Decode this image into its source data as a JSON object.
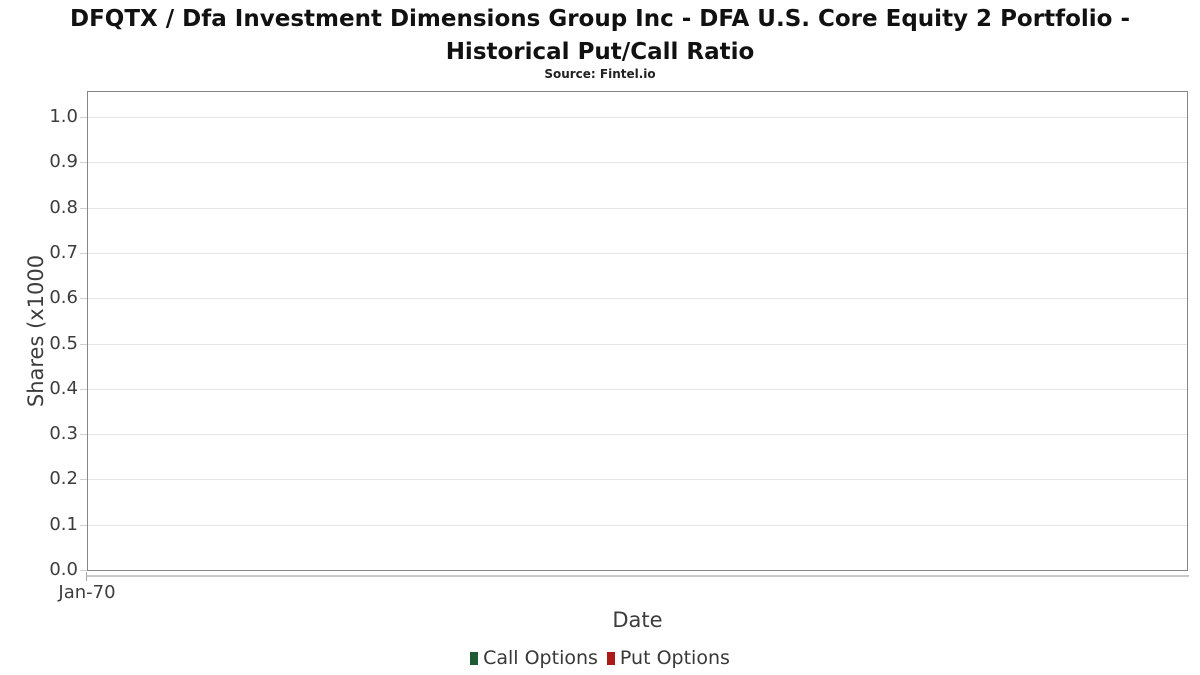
{
  "header": {
    "title_lines": [
      "DFQTX / Dfa Investment Dimensions Group Inc - DFA U.S. Core Equity 2 Portfolio -",
      "Historical Put/Call Ratio"
    ],
    "subtitle": "Source: Fintel.io"
  },
  "chart_data": {
    "type": "bar",
    "title": "DFQTX / Dfa Investment Dimensions Group Inc - DFA U.S. Core Equity 2 Portfolio - Historical Put/Call Ratio",
    "subtitle": "Source: Fintel.io",
    "xlabel": "Date",
    "ylabel": "Shares (x1000",
    "x_ticks": [
      "Jan-70"
    ],
    "y_ticks": [
      "0.0",
      "0.1",
      "0.2",
      "0.3",
      "0.4",
      "0.5",
      "0.6",
      "0.7",
      "0.8",
      "0.9",
      "1.0"
    ],
    "ylim": [
      0,
      1.05
    ],
    "grid": "horizontal",
    "legend_position": "bottom",
    "series": [
      {
        "name": "Call Options",
        "color": "#1e5a32",
        "values": []
      },
      {
        "name": "Put Options",
        "color": "#aa1a1a",
        "values": []
      }
    ]
  },
  "colors": {
    "plot_border": "#868686",
    "gridline": "#e5e5e5",
    "axis_line": "#c9c9c9",
    "tick_text": "#3d3d3d",
    "title_text": "#111111"
  }
}
